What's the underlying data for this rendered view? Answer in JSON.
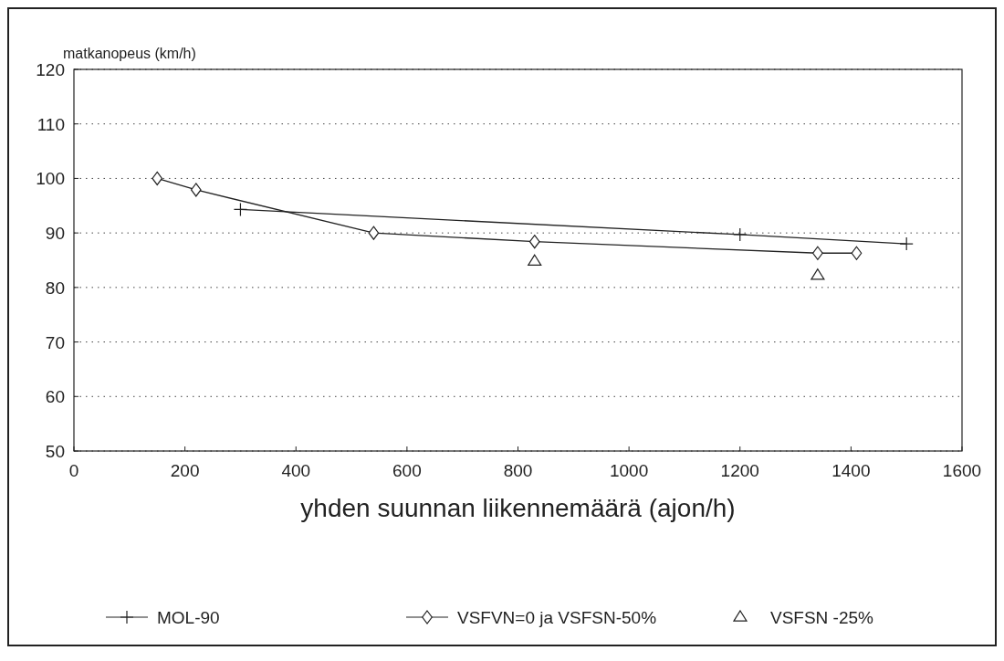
{
  "chart_data": {
    "type": "line",
    "ylabel": "matkanopeus (km/h)",
    "xlabel": "yhden suunnan liikennemäärä (ajon/h)",
    "xlim": [
      0,
      1600
    ],
    "xticks": [
      0,
      200,
      400,
      600,
      800,
      1000,
      1200,
      1400,
      1600
    ],
    "ylim": [
      50,
      120
    ],
    "yticks": [
      50,
      60,
      70,
      80,
      90,
      100,
      110,
      120
    ],
    "grid": "y",
    "legend": "bottom",
    "series": [
      {
        "name": "MOL-90",
        "color": "#222222",
        "marker": "cross",
        "x": [
          300,
          1200,
          1500
        ],
        "values": [
          94.3,
          89.7,
          88.0
        ]
      },
      {
        "name": "VSFVN=0 ja VSFSN-50%",
        "color": "#222222",
        "marker": "diamond",
        "x": [
          150,
          220,
          540,
          830,
          1340,
          1410
        ],
        "values": [
          100,
          97.9,
          90,
          88.4,
          86.3,
          86.3
        ]
      },
      {
        "name": "VSFSN -25%",
        "type": "scatter",
        "color": "#222222",
        "marker": "triangle",
        "x": [
          830,
          1340
        ],
        "values": [
          84.8,
          82.2
        ]
      }
    ]
  }
}
